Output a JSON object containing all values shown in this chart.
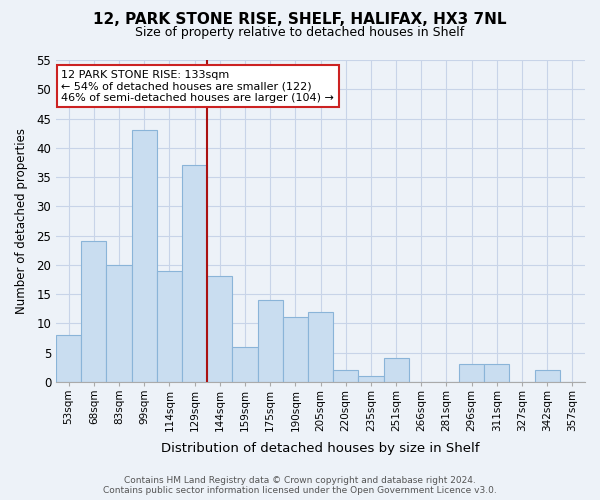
{
  "title": "12, PARK STONE RISE, SHELF, HALIFAX, HX3 7NL",
  "subtitle": "Size of property relative to detached houses in Shelf",
  "xlabel": "Distribution of detached houses by size in Shelf",
  "ylabel": "Number of detached properties",
  "categories": [
    "53sqm",
    "68sqm",
    "83sqm",
    "99sqm",
    "114sqm",
    "129sqm",
    "144sqm",
    "159sqm",
    "175sqm",
    "190sqm",
    "205sqm",
    "220sqm",
    "235sqm",
    "251sqm",
    "266sqm",
    "281sqm",
    "296sqm",
    "311sqm",
    "327sqm",
    "342sqm",
    "357sqm"
  ],
  "values": [
    8,
    24,
    20,
    43,
    19,
    37,
    18,
    6,
    14,
    11,
    12,
    2,
    1,
    4,
    0,
    0,
    3,
    3,
    0,
    2,
    0
  ],
  "bar_color": "#c9ddf0",
  "bar_edge_color": "#8ab4d8",
  "vline_color": "#aa1111",
  "annotation_text_line1": "12 PARK STONE RISE: 133sqm",
  "annotation_text_line2": "← 54% of detached houses are smaller (122)",
  "annotation_text_line3": "46% of semi-detached houses are larger (104) →",
  "annotation_box_color": "white",
  "annotation_box_edge_color": "#cc2222",
  "ylim": [
    0,
    55
  ],
  "yticks": [
    0,
    5,
    10,
    15,
    20,
    25,
    30,
    35,
    40,
    45,
    50,
    55
  ],
  "grid_color": "#c8d4e8",
  "background_color": "#edf2f8",
  "footer_text": "Contains HM Land Registry data © Crown copyright and database right 2024.\nContains public sector information licensed under the Open Government Licence v3.0.",
  "bin_width": 15,
  "vline_bin_index": 5
}
